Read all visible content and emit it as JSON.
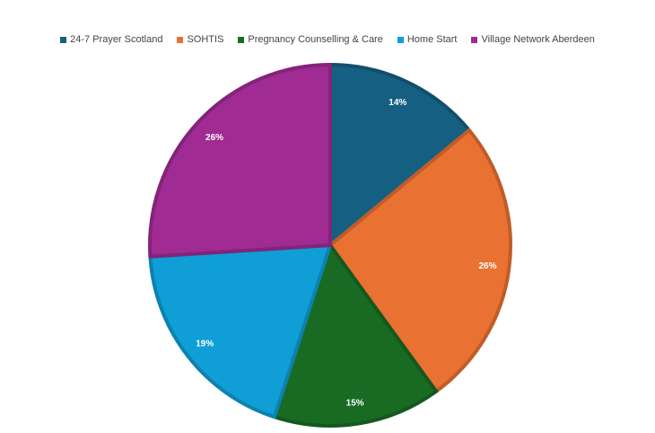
{
  "chart_data": {
    "type": "pie",
    "title": "",
    "legend_position": "top",
    "series": [
      {
        "name": "24-7 Prayer Scotland",
        "value": 14,
        "label": "14%",
        "color": "#156082"
      },
      {
        "name": "SOHTIS",
        "value": 26,
        "label": "26%",
        "color": "#E97132"
      },
      {
        "name": "Pregnancy Counselling & Care",
        "value": 15,
        "label": "15%",
        "color": "#196B24"
      },
      {
        "name": "Home Start",
        "value": 19,
        "label": "19%",
        "color": "#0F9ED5"
      },
      {
        "name": "Village Network Aberdeen",
        "value": 26,
        "label": "26%",
        "color": "#A02B93"
      }
    ]
  }
}
